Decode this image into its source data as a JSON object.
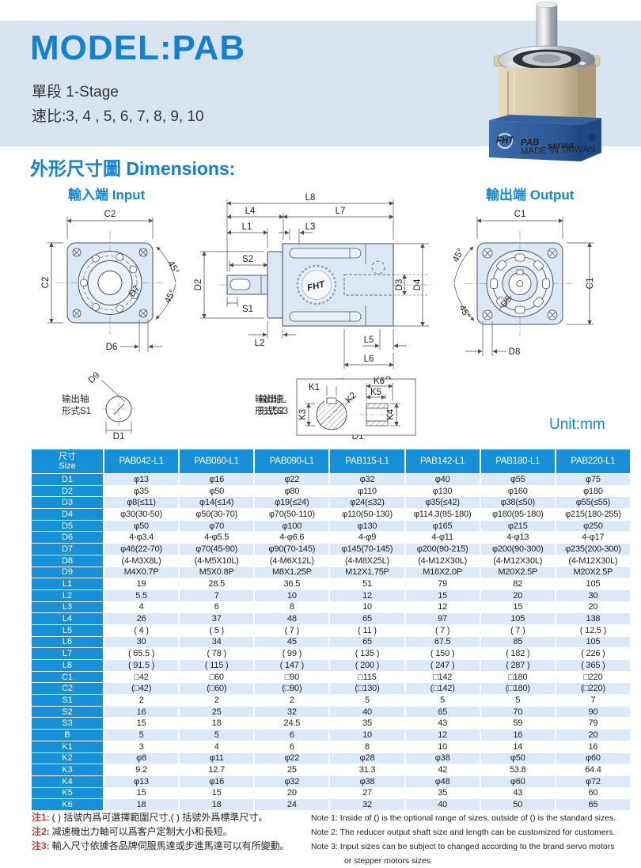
{
  "colors": {
    "accent_blue": "#1181d6",
    "table_blue": "#1590d9",
    "stripe_blue": "#dbeaf8",
    "banner_blue": "#d9e4f1",
    "note_red": "#e8302a"
  },
  "header": {
    "title": "MODEL:PAB",
    "stage_line": "單段 1-Stage",
    "ratio_line": "速比:3, 4 , 5, 6, 7, 8, 9, 10"
  },
  "product": {
    "brand": "FHT",
    "series": "PAB",
    "series_suffix": "series",
    "origin": "MADE IN TAIWAN"
  },
  "dimensions_section": {
    "heading": "外形尺寸圖 Dimensions:",
    "input_caption": "輸入端 Input",
    "output_caption": "輸出端 Output",
    "unit_label": "Unit:mm"
  },
  "drawing_labels": {
    "c1": "C1",
    "c2": "C2",
    "d1": "D1",
    "d2": "D2",
    "d3": "D3",
    "d4": "D4",
    "d5": "D5",
    "d6": "D6",
    "d7": "D7",
    "d8": "D8",
    "d9": "D9",
    "l1": "L1",
    "l2": "L2",
    "l3": "L3",
    "l4": "L4",
    "l5": "L5",
    "l6": "L6",
    "l7": "L7",
    "l8": "L8",
    "s1": "S1",
    "s2": "S2",
    "s3": "S3",
    "bh9": "Bh9",
    "k1": "K1",
    "k2": "K2",
    "k3": "K3",
    "k4": "K4",
    "k5": "K5",
    "k6": "K6",
    "deg45": "45°"
  },
  "shaft_diagrams": {
    "s1": {
      "line1": "输出轴",
      "line2": "形式S1"
    },
    "s2": {
      "line1": "输出轴",
      "line2": "形式S2"
    },
    "s3": {
      "line1": "输出孔",
      "line2": "形式S3"
    }
  },
  "table": {
    "size_header_zh": "尺寸",
    "size_header_en": "Size",
    "columns": [
      "PAB042-L1",
      "PAB060-L1",
      "PAB090-L1",
      "PAB115-L1",
      "PAB142-L1",
      "PAB180-L1",
      "PAB220-L1"
    ],
    "rows": [
      {
        "label": "D1",
        "values": [
          "φ13",
          "φ16",
          "φ22",
          "φ32",
          "φ40",
          "φ55",
          "φ75"
        ]
      },
      {
        "label": "D2",
        "values": [
          "φ35",
          "φ50",
          "φ80",
          "φ110",
          "φ130",
          "φ160",
          "φ180"
        ]
      },
      {
        "label": "D3",
        "values": [
          "φ8(≤11)",
          "φ14(≤14)",
          "φ19(≤24)",
          "φ24(≤32)",
          "φ35(≤42)",
          "φ38(≤50)",
          "φ55(≤55)"
        ]
      },
      {
        "label": "D4",
        "values": [
          "φ30(30-50)",
          "φ50(30-70)",
          "φ70(50-110)",
          "φ110(50-130)",
          "φ114.3(95-180)",
          "φ180(95-180)",
          "φ215(180-255)"
        ]
      },
      {
        "label": "D5",
        "values": [
          "φ50",
          "φ70",
          "φ100",
          "φ130",
          "φ165",
          "φ215",
          "φ250"
        ]
      },
      {
        "label": "D6",
        "values": [
          "4-φ3.4",
          "4-φ5.5",
          "4-φ6.6",
          "4-φ9",
          "4-φ11",
          "4-φ13",
          "4-φ17"
        ]
      },
      {
        "label": "D7",
        "values": [
          "φ46(22-70)",
          "φ70(45-90)",
          "φ90(70-145)",
          "φ145(70-145)",
          "φ200(90-215)",
          "φ200(90-300)",
          "φ235(200-300)"
        ]
      },
      {
        "label": "D8",
        "values": [
          "(4-M3X8L)",
          "(4-M5X10L)",
          "(4-M6X12L)",
          "(4-M8X25L)",
          "(4-M12X30L)",
          "(4-M12X30L)",
          "(4-M12X30L)"
        ]
      },
      {
        "label": "D9",
        "values": [
          "M4X0.7P",
          "M5X0.8P",
          "M8X1.25P",
          "M12X1.75P",
          "M16X2.0P",
          "M20X2.5P",
          "M20X2.5P"
        ]
      },
      {
        "label": "L1",
        "values": [
          "19",
          "28.5",
          "36.5",
          "51",
          "79",
          "82",
          "105"
        ]
      },
      {
        "label": "L2",
        "values": [
          "5.5",
          "7",
          "10",
          "12",
          "15",
          "20",
          "30"
        ]
      },
      {
        "label": "L3",
        "values": [
          "4",
          "6",
          "8",
          "10",
          "12",
          "15",
          "20"
        ]
      },
      {
        "label": "L4",
        "values": [
          "26",
          "37",
          "48",
          "65",
          "97",
          "105",
          "138"
        ]
      },
      {
        "label": "L5",
        "values": [
          "( 4 )",
          "( 5 )",
          "( 7 )",
          "( 11 )",
          "( 7 )",
          "( 7 )",
          "( 12.5 )"
        ]
      },
      {
        "label": "L6",
        "values": [
          "30",
          "34",
          "45",
          "65",
          "67.5",
          "85",
          "105"
        ]
      },
      {
        "label": "L7",
        "values": [
          "( 65.5 )",
          "( 78 )",
          "( 99 )",
          "( 135 )",
          "( 150 )",
          "( 182 )",
          "( 226 )"
        ]
      },
      {
        "label": "L8",
        "values": [
          "( 91.5 )",
          "( 115 )",
          "( 147 )",
          "( 200 )",
          "( 247 )",
          "( 287 )",
          "( 365 )"
        ]
      },
      {
        "label": "C1",
        "values": [
          "□42",
          "□60",
          "□90",
          "□115",
          "□142",
          "□180",
          "□220"
        ]
      },
      {
        "label": "C2",
        "values": [
          "(□42)",
          "(□60)",
          "(□90)",
          "(□130)",
          "(□142)",
          "(□180)",
          "(□220)"
        ]
      },
      {
        "label": "S1",
        "values": [
          "2",
          "2",
          "2",
          "5",
          "5",
          "5",
          "7"
        ]
      },
      {
        "label": "S2",
        "values": [
          "16",
          "25",
          "32",
          "40",
          "65",
          "70",
          "90"
        ]
      },
      {
        "label": "S3",
        "values": [
          "15",
          "18",
          "24.5",
          "35",
          "43",
          "59",
          "79"
        ]
      },
      {
        "label": "B",
        "values": [
          "5",
          "5",
          "6",
          "10",
          "12",
          "16",
          "20"
        ]
      },
      {
        "label": "K1",
        "values": [
          "3",
          "4",
          "6",
          "8",
          "10",
          "14",
          "16"
        ]
      },
      {
        "label": "K2",
        "values": [
          "φ8",
          "φ11",
          "φ22",
          "φ28",
          "φ38",
          "φ50",
          "φ60"
        ]
      },
      {
        "label": "K3",
        "values": [
          "9.2",
          "12.7",
          "25",
          "31.3",
          "42",
          "53.8",
          "64.4"
        ]
      },
      {
        "label": "K4",
        "values": [
          "φ13",
          "φ16",
          "φ32",
          "φ38",
          "φ48",
          "φ60",
          "φ72"
        ]
      },
      {
        "label": "K5",
        "values": [
          "15",
          "15",
          "20",
          "27",
          "35",
          "43",
          "60"
        ]
      },
      {
        "label": "K6",
        "values": [
          "18",
          "18",
          "24",
          "32",
          "40",
          "50",
          "65"
        ]
      }
    ]
  },
  "notes": {
    "zh": [
      {
        "tag": "注1:",
        "text": "( ) 括號内爲可選擇範圍尺寸,( ) 括號外爲標準尺寸。"
      },
      {
        "tag": "注2:",
        "text": "减速機出力軸可以爲客户定制大小和長短。"
      },
      {
        "tag": "注3:",
        "text": "輸入尺寸依據各品牌伺服馬達或步進馬達可以有所變動。"
      }
    ],
    "en": [
      "Note 1: Inside of () is the optional range of sizes, outside of () is the standard sizes.",
      "Note 2: The reducer output shaft size and length can be customized for customers.",
      "Note 3: Input sizes can be subject to changed according to the brand servo motors"
    ],
    "en_cont": "or stepper motors sizes"
  }
}
